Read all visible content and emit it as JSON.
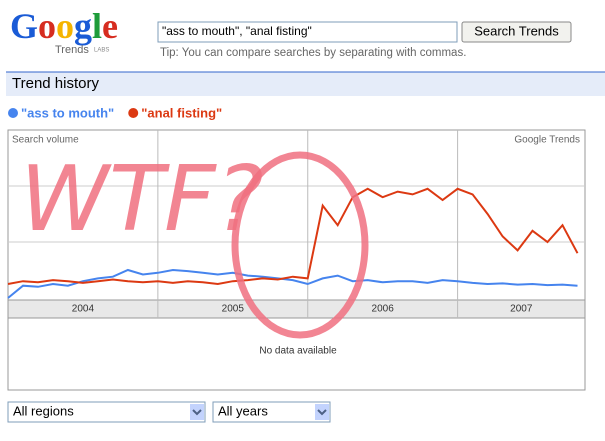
{
  "header": {
    "logo": "Google",
    "logo_sub": "Trends",
    "labs": "LABS",
    "query": "\"ass to mouth\", \"anal fisting\"",
    "button": "Search Trends",
    "tip": "Tip: You can compare searches by separating with commas."
  },
  "section_title": "Trend history",
  "chart_data": {
    "type": "line",
    "y_label": "Search volume",
    "watermark": "Google Trends",
    "no_data": "No data available",
    "annotation": "WTF?",
    "x": [
      2004.0,
      2004.1,
      2004.2,
      2004.3,
      2004.4,
      2004.5,
      2004.6,
      2004.7,
      2004.8,
      2004.9,
      2005.0,
      2005.1,
      2005.2,
      2005.3,
      2005.4,
      2005.5,
      2005.6,
      2005.7,
      2005.8,
      2005.9,
      2006.0,
      2006.1,
      2006.2,
      2006.3,
      2006.4,
      2006.5,
      2006.6,
      2006.7,
      2006.8,
      2006.9,
      2007.0,
      2007.1,
      2007.2,
      2007.3,
      2007.4,
      2007.5,
      2007.6,
      2007.7,
      2007.8
    ],
    "series": [
      {
        "name": "\"ass to mouth\"",
        "color": "#4684ee",
        "values": [
          0.0,
          0.22,
          0.2,
          0.25,
          0.22,
          0.3,
          0.35,
          0.38,
          0.5,
          0.42,
          0.45,
          0.5,
          0.48,
          0.45,
          0.42,
          0.45,
          0.4,
          0.38,
          0.35,
          0.32,
          0.25,
          0.35,
          0.4,
          0.3,
          0.32,
          0.28,
          0.3,
          0.3,
          0.27,
          0.32,
          0.3,
          0.27,
          0.25,
          0.26,
          0.24,
          0.25,
          0.23,
          0.24,
          0.22
        ]
      },
      {
        "name": "\"anal fisting\"",
        "color": "#dc3912",
        "values": [
          0.25,
          0.3,
          0.28,
          0.32,
          0.3,
          0.27,
          0.3,
          0.33,
          0.3,
          0.28,
          0.3,
          0.27,
          0.3,
          0.28,
          0.25,
          0.3,
          0.32,
          0.35,
          0.33,
          0.38,
          0.35,
          1.65,
          1.3,
          1.8,
          1.95,
          1.8,
          1.9,
          1.85,
          1.95,
          1.75,
          1.95,
          1.85,
          1.5,
          1.1,
          0.85,
          1.2,
          1.0,
          1.3,
          0.8
        ]
      }
    ],
    "xlim": [
      2004,
      2007.85
    ],
    "ylim": [
      0,
      3
    ],
    "ygrid": [
      1,
      2
    ],
    "xticks": [
      {
        "value": 2004.5,
        "label": "2004"
      },
      {
        "value": 2005.5,
        "label": "2005"
      },
      {
        "value": 2006.5,
        "label": "2006"
      },
      {
        "value": 2007.425,
        "label": "2007"
      }
    ]
  },
  "controls": {
    "regions": "All regions",
    "years": "All years"
  }
}
